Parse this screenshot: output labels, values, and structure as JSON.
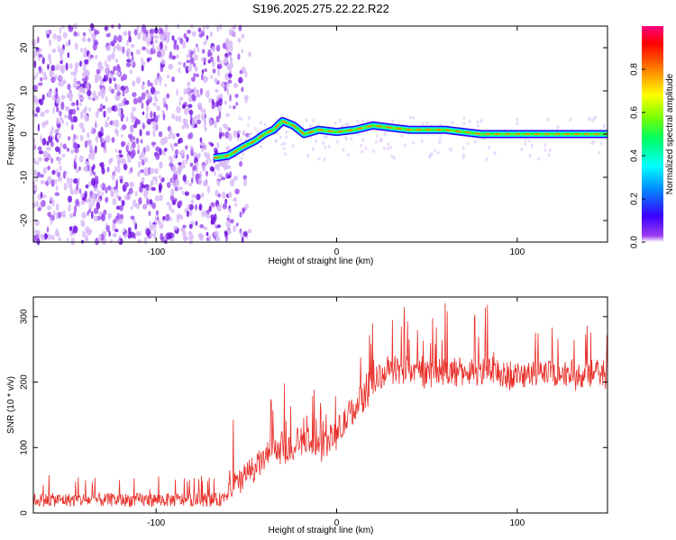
{
  "title": "S196.2025.275.22.22.R22",
  "colors": {
    "noise_dot": "#8a2be2",
    "snr_line": "#e8302a"
  },
  "chart_data": [
    {
      "type": "heatmap",
      "name": "spectrogram",
      "xlabel": "Height of straight line (km)",
      "ylabel": "Frequency (Hz)",
      "xlim": [
        -168,
        150
      ],
      "ylim": [
        -25,
        25
      ],
      "xticks": [
        -100,
        0,
        100
      ],
      "xtick_labels": [
        "-100",
        "0",
        "100"
      ],
      "yticks": [
        -20,
        -10,
        0,
        10,
        20
      ],
      "ytick_labels": [
        "-20",
        "-10",
        "0",
        "10",
        "20"
      ],
      "noise_region_x": [
        -168,
        -58
      ],
      "ridge": {
        "description_points": [
          {
            "x": -68,
            "y": -5.5
          },
          {
            "x": -60,
            "y": -5
          },
          {
            "x": -52,
            "y": -3
          },
          {
            "x": -45,
            "y": -1.5
          },
          {
            "x": -40,
            "y": 0
          },
          {
            "x": -35,
            "y": 1
          },
          {
            "x": -30,
            "y": 3
          },
          {
            "x": -24,
            "y": 2
          },
          {
            "x": -18,
            "y": 0
          },
          {
            "x": -10,
            "y": 1
          },
          {
            "x": 0,
            "y": 0.5
          },
          {
            "x": 10,
            "y": 1
          },
          {
            "x": 20,
            "y": 2
          },
          {
            "x": 30,
            "y": 1.5
          },
          {
            "x": 40,
            "y": 1
          },
          {
            "x": 60,
            "y": 1
          },
          {
            "x": 80,
            "y": 0
          },
          {
            "x": 100,
            "y": 0
          },
          {
            "x": 150,
            "y": 0
          }
        ]
      },
      "colorbar": {
        "label": "Normalized spectral amplitude",
        "range": [
          0,
          1
        ],
        "ticks": [
          0.0,
          0.2,
          0.4,
          0.6,
          0.8
        ],
        "tick_labels": [
          "0.0",
          "0.2",
          "0.4",
          "0.6",
          "0.8"
        ]
      }
    },
    {
      "type": "line",
      "name": "snr",
      "xlabel": "Height of straight line (km)",
      "ylabel": "SNR (10 * v/v)",
      "xlim": [
        -168,
        150
      ],
      "ylim": [
        0,
        330
      ],
      "xticks": [
        -100,
        0,
        100
      ],
      "xtick_labels": [
        "-100",
        "0",
        "100"
      ],
      "yticks": [
        0,
        100,
        200,
        300
      ],
      "ytick_labels": [
        "0",
        "100",
        "200",
        "300"
      ],
      "trend": {
        "x": [
          -168,
          -65,
          -58,
          -50,
          -45,
          -35,
          -25,
          -15,
          -10,
          0,
          10,
          20,
          30,
          50,
          80,
          100,
          120,
          150
        ],
        "y": [
          20,
          20,
          35,
          60,
          70,
          95,
          100,
          110,
          100,
          120,
          160,
          200,
          220,
          215,
          215,
          210,
          215,
          210
        ]
      },
      "noise_amplitude_low": 15,
      "noise_amplitude_high": 40
    }
  ]
}
